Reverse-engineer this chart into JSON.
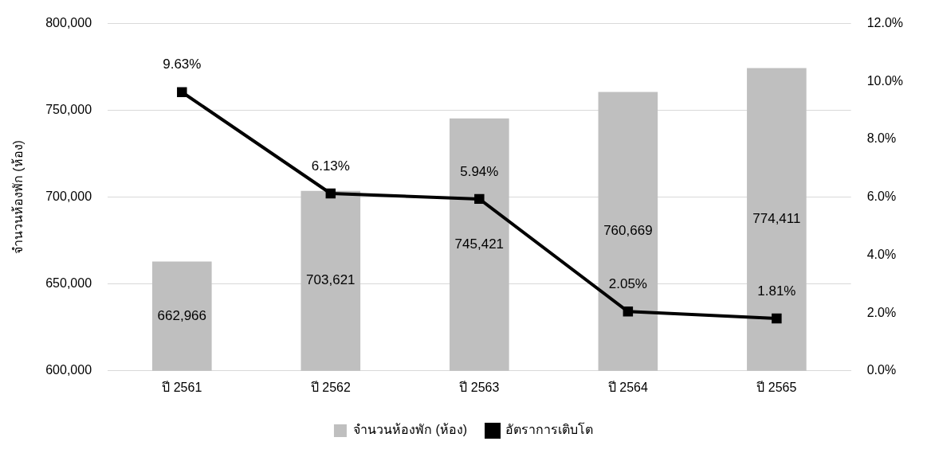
{
  "chart_data": {
    "type": "bar",
    "ylabel": "จำนวนห้องพัก (ห้อง)",
    "categories": [
      "ปี 2561",
      "ปี 2562",
      "ปี 2563",
      "ปี 2564",
      "ปี 2565"
    ],
    "series": [
      {
        "name": "จำนวนห้องพัก (ห้อง)",
        "color": "#bfbfbf",
        "values": [
          662966,
          703621,
          745421,
          760669,
          774411
        ],
        "value_labels": [
          "662,966",
          "703,621",
          "745,421",
          "760,669",
          "774,411"
        ]
      },
      {
        "type": "line",
        "name": "อัตราการเติบโต",
        "color": "#000000",
        "axis": "y2",
        "values": [
          9.63,
          6.13,
          5.94,
          2.05,
          1.81
        ],
        "value_labels": [
          "9.63%",
          "6.13%",
          "5.94%",
          "2.05%",
          "1.81%"
        ]
      }
    ],
    "ylim": [
      600000,
      800000
    ],
    "yticks": [
      {
        "value": 600000,
        "label": "600,000"
      },
      {
        "value": 650000,
        "label": "650,000"
      },
      {
        "value": 700000,
        "label": "700,000"
      },
      {
        "value": 750000,
        "label": "750,000"
      },
      {
        "value": 800000,
        "label": "800,000"
      }
    ],
    "y2lim": [
      0,
      12
    ],
    "y2ticks": [
      {
        "value": 0,
        "label": "0.0%"
      },
      {
        "value": 2,
        "label": "2.0%"
      },
      {
        "value": 4,
        "label": "4.0%"
      },
      {
        "value": 6,
        "label": "6.0%"
      },
      {
        "value": 8,
        "label": "8.0%"
      },
      {
        "value": 10,
        "label": "10.0%"
      },
      {
        "value": 12,
        "label": "12.0%"
      }
    ],
    "grid": "y",
    "legend": "bottom",
    "marker": "square"
  }
}
